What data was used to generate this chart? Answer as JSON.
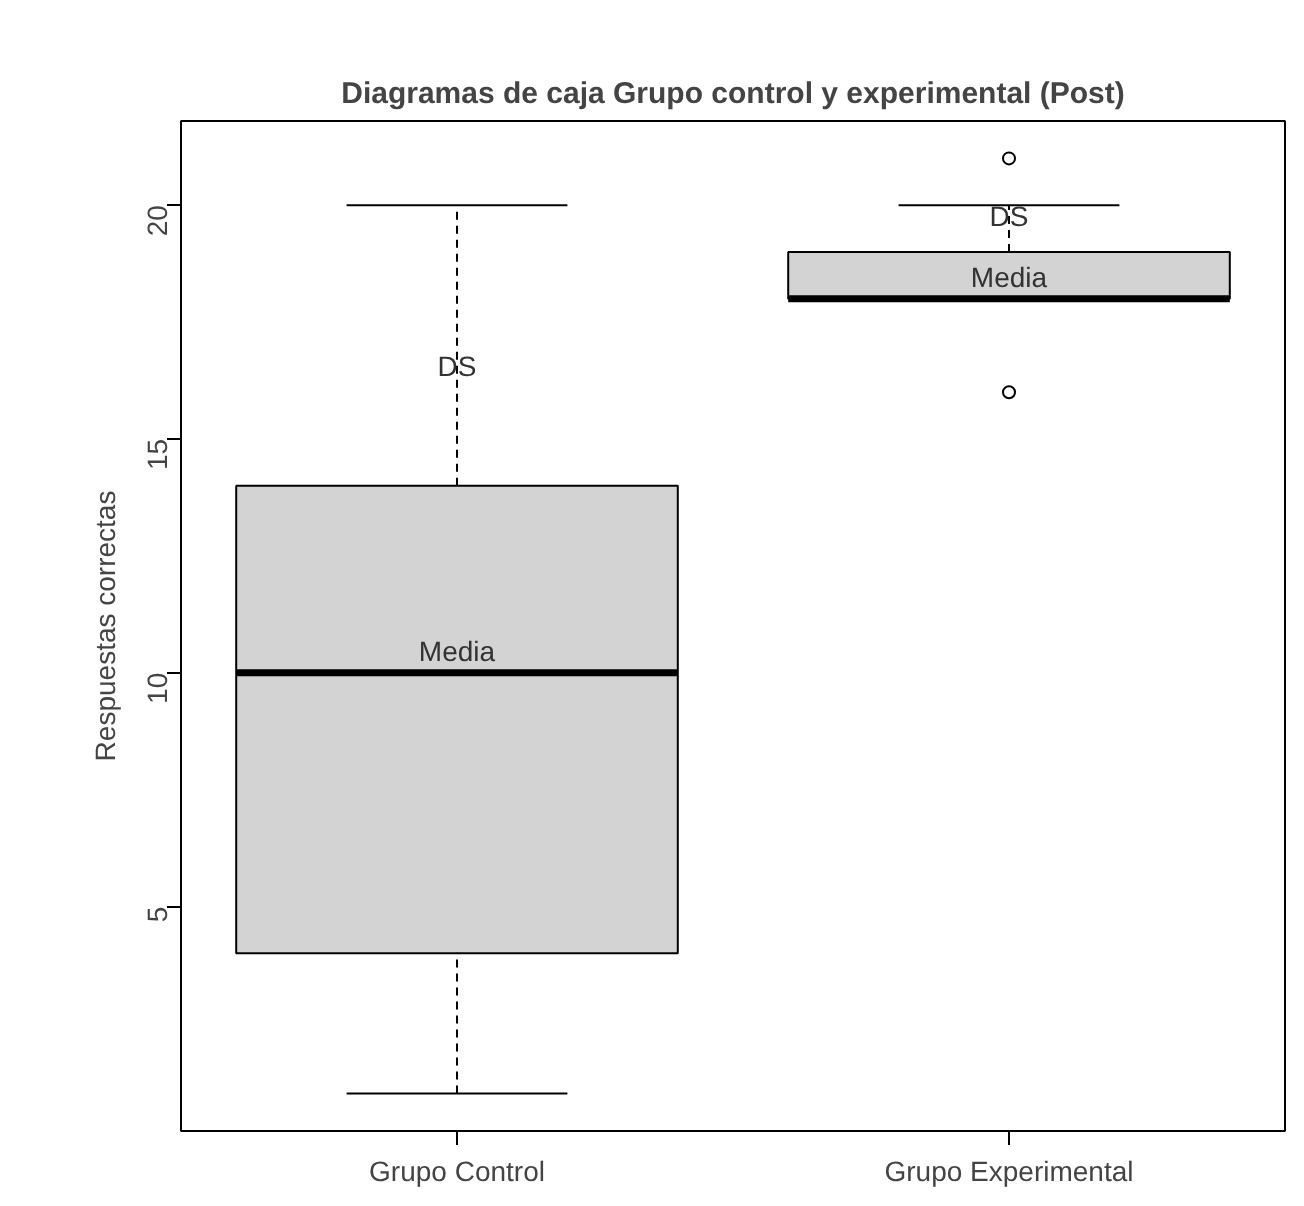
{
  "chart_data": {
    "type": "box",
    "title": "Diagramas de caja Grupo control y experimental (Post)",
    "ylabel": "Respuestas correctas",
    "categories": [
      "Grupo Control",
      "Grupo Experimental"
    ],
    "series": [
      {
        "color": "#d3d3d3",
        "boxes": [
          {
            "low": 1,
            "q1": 4,
            "median": 10,
            "q3": 14,
            "high": 20
          },
          {
            "low": 18,
            "q1": 18,
            "median": 18,
            "q3": 19,
            "high": 20,
            "outliers": [
              16,
              21
            ]
          }
        ]
      }
    ],
    "ylim": [
      0.2,
      21.8
    ],
    "yticks": [
      5,
      10,
      15,
      20
    ],
    "grid": false,
    "annotations": [
      {
        "text": "DS",
        "x": "Grupo Control",
        "y": 16.1
      },
      {
        "text": "Media",
        "x": "Grupo Control",
        "y": 10
      },
      {
        "text": "DS",
        "x": "Grupo Experimental",
        "y": 19.3
      },
      {
        "text": "Media",
        "x": "Grupo Experimental",
        "y": 18
      }
    ]
  }
}
